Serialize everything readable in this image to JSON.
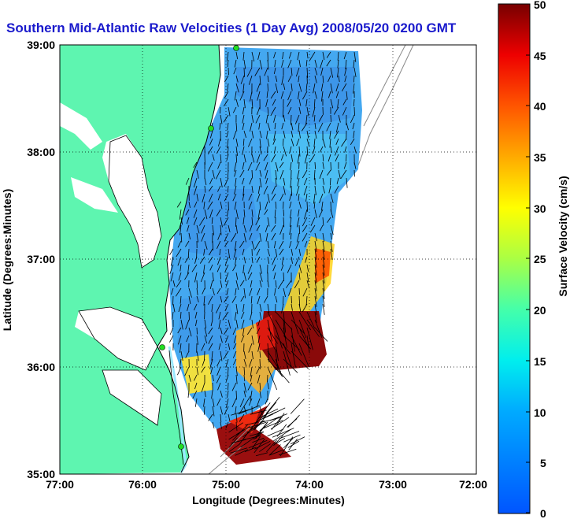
{
  "title": "Southern Mid-Atlantic Raw Velocities (1 Day Avg) 2008/05/20 0200 GMT",
  "xlabel": "Longitude (Degrees:Minutes)",
  "ylabel": "Latitude (Degrees:Minutes)",
  "x_ticks": [
    "77:00",
    "76:00",
    "75:00",
    "74:00",
    "73:00",
    "72:00"
  ],
  "y_ticks": [
    "39:00",
    "38:00",
    "37:00",
    "36:00",
    "35:00"
  ],
  "colorbar": {
    "label": "Surface Velocity (cm/s)",
    "ticks": [
      "50",
      "45",
      "40",
      "35",
      "30",
      "25",
      "20",
      "15",
      "10",
      "5",
      "0"
    ]
  },
  "colors": {
    "land": "#5ef5b0",
    "title": "#1a1acc",
    "station_marker": "#22dd22"
  },
  "chart_data": {
    "type": "heatmap",
    "title": "Southern Mid-Atlantic Raw Velocities (1 Day Avg) 2008/05/20 0200 GMT",
    "xlabel": "Longitude (Degrees:Minutes)",
    "ylabel": "Latitude (Degrees:Minutes)",
    "xlim": [
      -77,
      -72
    ],
    "ylim": [
      35,
      39
    ],
    "grid": true,
    "colorbar_range_cm_s": [
      0,
      50
    ],
    "dominant_speed_cm_s": 12,
    "high_speed_region": {
      "lon": [
        -74.7,
        -74.0
      ],
      "lat": [
        35.9,
        36.5
      ],
      "speed_cm_s": 50
    },
    "secondary_high_region": {
      "lon": [
        -75.1,
        -74.5
      ],
      "lat": [
        35.0,
        35.4
      ],
      "speed_cm_s": 50
    }
  }
}
